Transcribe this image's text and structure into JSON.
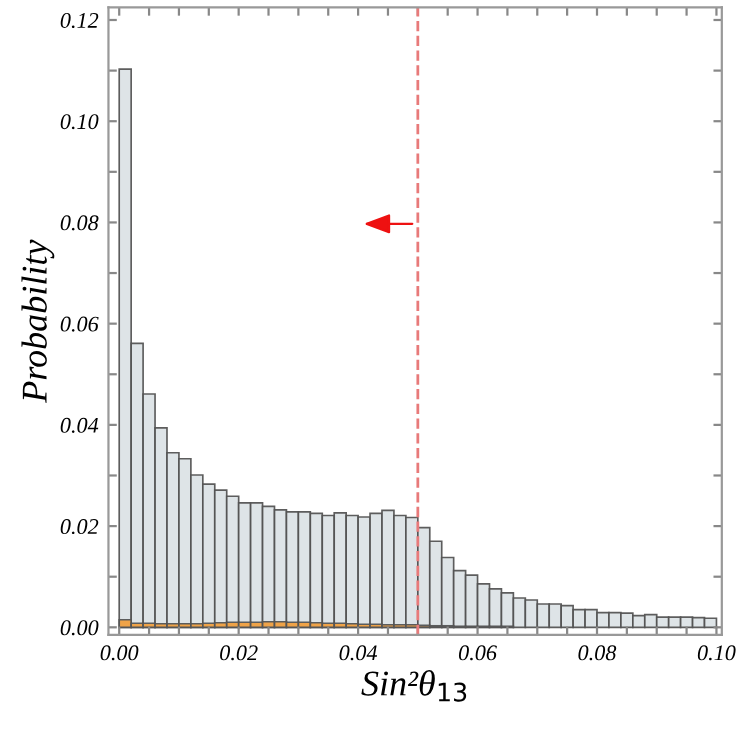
{
  "chart_data": {
    "type": "histogram",
    "xlabel": "Sin²θ$_{13}$",
    "ylabel": "Probability",
    "bins": [
      0.0,
      0.002,
      0.004,
      0.006,
      0.008,
      0.01,
      0.012,
      0.014,
      0.016,
      0.018,
      0.02,
      0.022,
      0.024,
      0.026,
      0.028,
      0.03,
      0.032,
      0.034,
      0.036,
      0.038,
      0.04,
      0.042,
      0.044,
      0.046,
      0.048,
      0.05,
      0.052,
      0.054,
      0.056,
      0.058,
      0.06,
      0.062,
      0.064,
      0.066,
      0.068,
      0.07,
      0.072,
      0.074,
      0.076,
      0.078,
      0.08,
      0.082,
      0.084,
      0.086,
      0.088,
      0.09,
      0.092,
      0.094,
      0.096,
      0.098,
      0.1
    ],
    "series": [
      {
        "color": "#dde3e6",
        "values": [
          0.1103,
          0.0561,
          0.0461,
          0.0394,
          0.0345,
          0.0333,
          0.0301,
          0.0283,
          0.0271,
          0.0259,
          0.0246,
          0.0246,
          0.0239,
          0.0232,
          0.0228,
          0.0228,
          0.0225,
          0.0221,
          0.0226,
          0.0221,
          0.0218,
          0.0225,
          0.0231,
          0.0221,
          0.0217,
          0.0197,
          0.017,
          0.0138,
          0.0112,
          0.0103,
          0.0086,
          0.0076,
          0.0068,
          0.0058,
          0.0054,
          0.0046,
          0.0046,
          0.0043,
          0.0035,
          0.0035,
          0.0029,
          0.0029,
          0.0028,
          0.0023,
          0.0025,
          0.002,
          0.002,
          0.002,
          0.0019,
          0.0018
        ]
      },
      {
        "color": "#f0a040",
        "values": [
          0.0015,
          0.0008,
          0.0008,
          0.0007,
          0.0007,
          0.0007,
          0.0007,
          0.0008,
          0.0009,
          0.001,
          0.001,
          0.001,
          0.0011,
          0.0011,
          0.001,
          0.001,
          0.0009,
          0.0008,
          0.0008,
          0.0007,
          0.0006,
          0.0006,
          0.0005,
          0.0005,
          0.0005,
          0.0004,
          0.0003,
          0.0003,
          0.0002,
          0.0002,
          0.0002,
          0.0002,
          0.0002,
          null,
          null,
          null,
          null,
          null,
          null,
          null,
          null,
          null,
          null,
          null,
          null,
          null,
          null,
          null,
          null,
          null
        ]
      }
    ],
    "xlim": [
      -0.0018,
      0.1009
    ],
    "ylim": [
      -0.0015,
      0.1225
    ],
    "xticks": [
      {
        "value": 0.0,
        "label": "0.00"
      },
      {
        "value": 0.005,
        "label": null
      },
      {
        "value": 0.01,
        "label": null
      },
      {
        "value": 0.015,
        "label": null
      },
      {
        "value": 0.02,
        "label": "0.02"
      },
      {
        "value": 0.025,
        "label": null
      },
      {
        "value": 0.03,
        "label": null
      },
      {
        "value": 0.035,
        "label": null
      },
      {
        "value": 0.04,
        "label": "0.04"
      },
      {
        "value": 0.045,
        "label": null
      },
      {
        "value": 0.05,
        "label": null
      },
      {
        "value": 0.055,
        "label": null
      },
      {
        "value": 0.06,
        "label": "0.06"
      },
      {
        "value": 0.065,
        "label": null
      },
      {
        "value": 0.07,
        "label": null
      },
      {
        "value": 0.075,
        "label": null
      },
      {
        "value": 0.08,
        "label": "0.08"
      },
      {
        "value": 0.085,
        "label": null
      },
      {
        "value": 0.09,
        "label": null
      },
      {
        "value": 0.095,
        "label": null
      },
      {
        "value": 0.1,
        "label": "0.10"
      }
    ],
    "yticks": [
      {
        "value": 0.0,
        "label": "0.00"
      },
      {
        "value": 0.01,
        "label": null
      },
      {
        "value": 0.02,
        "label": "0.02"
      },
      {
        "value": 0.03,
        "label": null
      },
      {
        "value": 0.04,
        "label": "0.04"
      },
      {
        "value": 0.05,
        "label": null
      },
      {
        "value": 0.06,
        "label": "0.06"
      },
      {
        "value": 0.07,
        "label": null
      },
      {
        "value": 0.08,
        "label": "0.08"
      },
      {
        "value": 0.09,
        "label": null
      },
      {
        "value": 0.1,
        "label": "0.10"
      },
      {
        "value": 0.11,
        "label": null
      },
      {
        "value": 0.12,
        "label": "0.12"
      }
    ],
    "ref_lines": [
      {
        "axis": "x",
        "value": 0.05,
        "color": "#e87a7a",
        "line_style": "dashed"
      }
    ],
    "grid": false,
    "legend": false
  }
}
